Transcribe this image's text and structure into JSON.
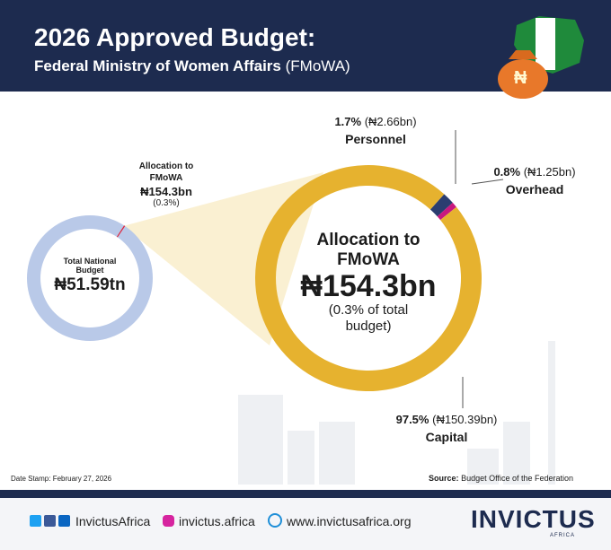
{
  "header": {
    "title": "2026 Approved Budget:",
    "subtitle": "Federal Ministry of Women Affairs",
    "subtitle_abbr": "(FMoWA)",
    "icon_symbol": "₦"
  },
  "chart_data": [
    {
      "type": "donut",
      "center_title": "Total National Budget",
      "center_value": "₦51.59tn",
      "ring_color": "#b9c9e8",
      "categories": [
        "Allocation to FMoWA"
      ],
      "values": [
        0.3
      ],
      "value_labels": [
        "(0.3%)"
      ],
      "amount_labels": [
        "₦154.3bn"
      ],
      "colors": [
        "#e0223a"
      ]
    },
    {
      "type": "donut",
      "center_title": "Allocation to FMoWA",
      "center_value": "₦154.3bn",
      "center_note": "(0.3% of total budget)",
      "categories": [
        "Personnel",
        "Overhead",
        "Capital"
      ],
      "values": [
        1.7,
        0.8,
        97.5
      ],
      "value_labels": [
        "1.7%",
        "0.8%",
        "97.5%"
      ],
      "amount_labels": [
        "(₦2.66bn)",
        "(₦1.25bn)",
        "(₦150.39bn)"
      ],
      "colors": [
        "#2b3d70",
        "#c8187f",
        "#e6b22f"
      ]
    }
  ],
  "footer": {
    "date_stamp": "Date Stamp: February 27, 2026",
    "source_label": "Source:",
    "source": "Budget Office of the Federation",
    "social": "InvictusAfrica",
    "instagram": "invictus.africa",
    "website": "www.invictusafrica.org",
    "logo": "INVICTUS",
    "logo_sub": "AFRICA"
  }
}
